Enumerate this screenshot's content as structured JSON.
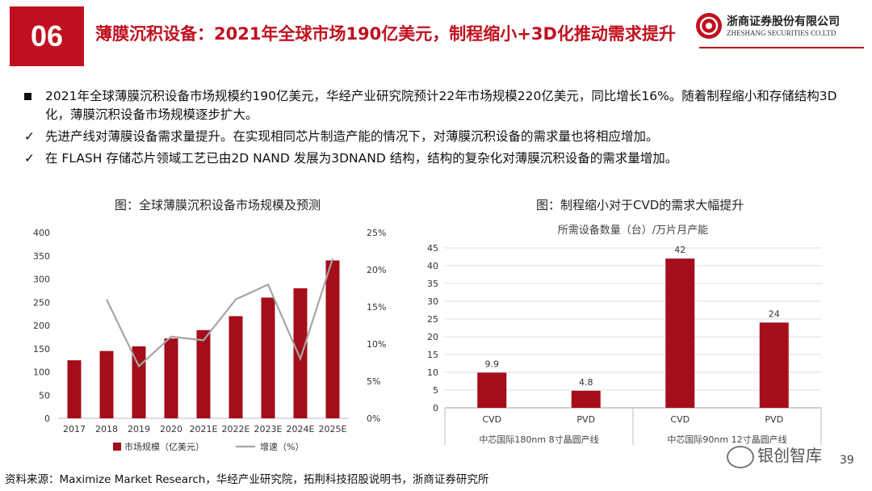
{
  "header": {
    "section_number": "06",
    "title": "薄膜沉积设备：2021年全球市场190亿美元，制程缩小+3D化推动需求提升",
    "logo_cn": "浙商证券股份有限公司",
    "logo_en": "ZHESHANG SECURITIES CO.LTD"
  },
  "bullets": [
    {
      "marker": "■",
      "text": "2021年全球薄膜沉积设备市场规模约190亿美元，华经产业研究院预计22年市场规模220亿美元，同比增长16%。随着制程缩小和存储结构3D化，薄膜沉积设备市场规模逐步扩大。"
    },
    {
      "marker": "✓",
      "text": "先进产线对薄膜设备需求量提升。在实现相同芯片制造产能的情况下，对薄膜沉积设备的需求量也将相应增加。"
    },
    {
      "marker": "✓",
      "text": "在 FLASH 存储芯片领域工艺已由2D NAND 发展为3DNAND 结构，结构的复杂化对薄膜沉积设备的需求量增加。"
    }
  ],
  "chart_titles": {
    "left": "图：全球薄膜沉积设备市场规模及预测",
    "right": "图：制程缩小对于CVD的需求大幅提升"
  },
  "chart_data": [
    {
      "type": "bar",
      "title": "图：全球薄膜沉积设备市场规模及预测",
      "categories": [
        "2017",
        "2018",
        "2019",
        "2020",
        "2021E",
        "2022E",
        "2023E",
        "2024E",
        "2025E"
      ],
      "series": [
        {
          "name": "市场规模（亿美元）",
          "type": "bar",
          "axis": "left",
          "color": "#a50d1a",
          "values": [
            125,
            145,
            155,
            172,
            190,
            220,
            260,
            280,
            340
          ]
        },
        {
          "name": "增速（%）",
          "type": "line",
          "axis": "right",
          "color": "#a6a6a6",
          "values": [
            null,
            16,
            7,
            11,
            10.5,
            16,
            18,
            8,
            21.5
          ]
        }
      ],
      "ylim": [
        0,
        400
      ],
      "yticks": [
        0,
        50,
        100,
        150,
        200,
        250,
        300,
        350,
        400
      ],
      "y2lim": [
        0,
        25
      ],
      "y2ticks": [
        "0%",
        "5%",
        "10%",
        "15%",
        "20%",
        "25%"
      ],
      "legend": [
        "市场规模（亿美元）",
        "增速（%）"
      ],
      "legend_position": "bottom"
    },
    {
      "type": "bar",
      "title": "图：制程缩小对于CVD的需求大幅提升",
      "subtitle": "所需设备数量（台）/万片月产能",
      "categories": [
        "CVD",
        "PVD",
        "CVD",
        "PVD"
      ],
      "groups": [
        "中芯国际180nm 8寸晶圆产线",
        "中芯国际90nm 12寸晶圆产线"
      ],
      "values": [
        9.9,
        4.8,
        42,
        24
      ],
      "labels": [
        "9.9",
        "4.8",
        "42",
        "24"
      ],
      "color": "#a50d1a",
      "ylim": [
        0,
        45
      ],
      "yticks": [
        0,
        5,
        10,
        15,
        20,
        25,
        30,
        35,
        40,
        45
      ]
    }
  ],
  "footer": {
    "source": "资料来源：Maximize Market Research，华经产业研究院，拓荆科技招股说明书，浙商证券研究所",
    "page_number": "39",
    "watermark": "银创智库"
  }
}
